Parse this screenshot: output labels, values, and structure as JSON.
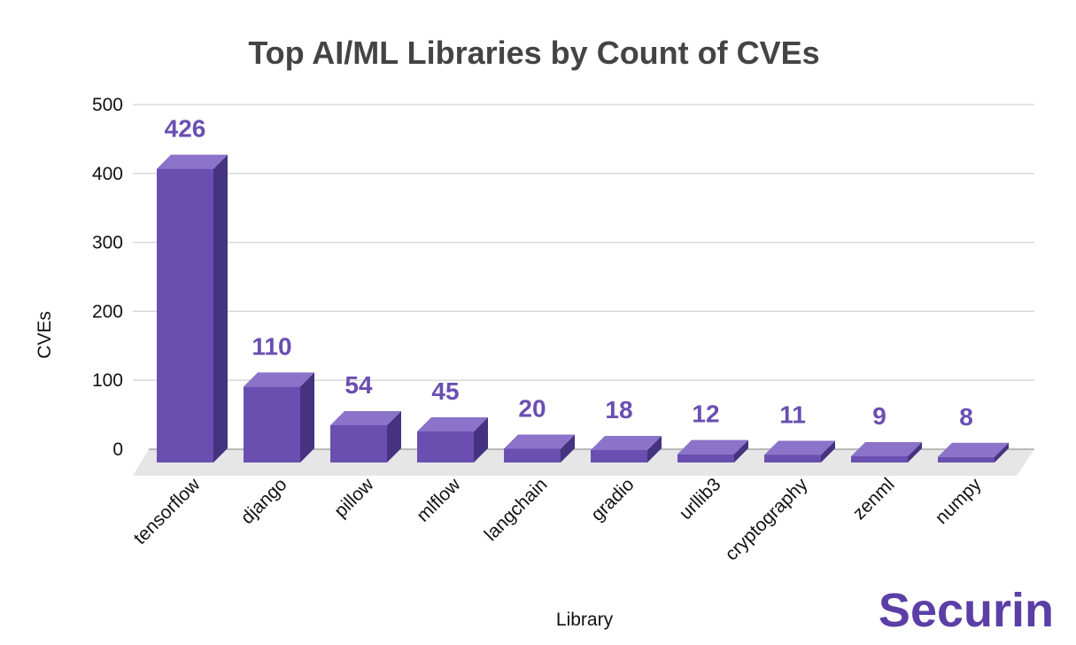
{
  "brand": {
    "text": "Securin",
    "color": "#5b3ea6"
  },
  "chart_data": {
    "type": "bar",
    "title": "Top AI/ML Libraries by Count of CVEs",
    "xlabel": "Library",
    "ylabel": "CVEs",
    "categories": [
      "tensorflow",
      "django",
      "pillow",
      "mlflow",
      "langchain",
      "gradio",
      "urllib3",
      "cryptography",
      "zenml",
      "numpy"
    ],
    "values": [
      426,
      110,
      54,
      45,
      20,
      18,
      12,
      11,
      9,
      8
    ],
    "ylim": [
      0,
      500
    ],
    "yticks": [
      0,
      100,
      200,
      300,
      400,
      500
    ],
    "grid": true,
    "legend": "none",
    "colors": {
      "bar_front": "#6a4fb1",
      "bar_top": "#8a73c9",
      "bar_side": "#453280",
      "data_label": "#6a4fb1",
      "grid": "#d4d4d4",
      "floor": "#e6e6e6"
    }
  }
}
